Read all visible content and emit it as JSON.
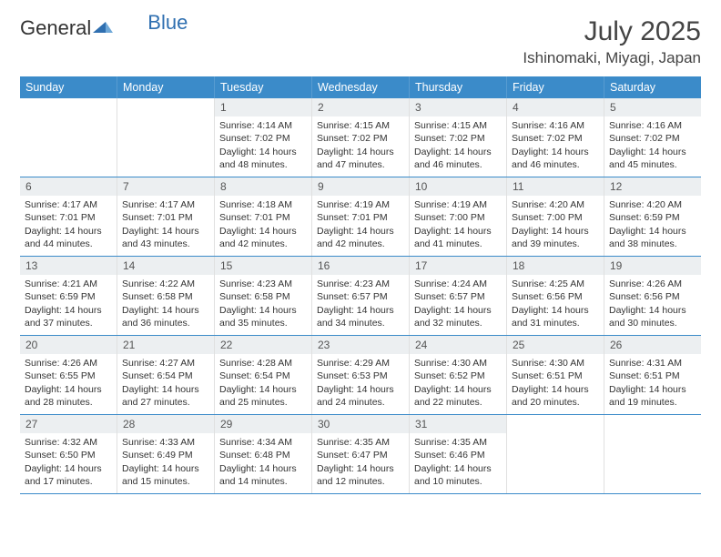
{
  "brand": {
    "part1": "General",
    "part2": "Blue"
  },
  "title": "July 2025",
  "location": "Ishinomaki, Miyagi, Japan",
  "colors": {
    "header_bg": "#3b8bc9",
    "header_text": "#ffffff",
    "daynum_bg": "#eceff1",
    "week_border": "#3b8bc9",
    "cell_border": "#e0e0e0",
    "body_text": "#333333",
    "logo_accent": "#2f6fb0"
  },
  "day_headers": [
    "Sunday",
    "Monday",
    "Tuesday",
    "Wednesday",
    "Thursday",
    "Friday",
    "Saturday"
  ],
  "weeks": [
    [
      {
        "empty": true
      },
      {
        "empty": true
      },
      {
        "n": "1",
        "sunrise": "4:14 AM",
        "sunset": "7:02 PM",
        "daylight": "14 hours and 48 minutes."
      },
      {
        "n": "2",
        "sunrise": "4:15 AM",
        "sunset": "7:02 PM",
        "daylight": "14 hours and 47 minutes."
      },
      {
        "n": "3",
        "sunrise": "4:15 AM",
        "sunset": "7:02 PM",
        "daylight": "14 hours and 46 minutes."
      },
      {
        "n": "4",
        "sunrise": "4:16 AM",
        "sunset": "7:02 PM",
        "daylight": "14 hours and 46 minutes."
      },
      {
        "n": "5",
        "sunrise": "4:16 AM",
        "sunset": "7:02 PM",
        "daylight": "14 hours and 45 minutes."
      }
    ],
    [
      {
        "n": "6",
        "sunrise": "4:17 AM",
        "sunset": "7:01 PM",
        "daylight": "14 hours and 44 minutes."
      },
      {
        "n": "7",
        "sunrise": "4:17 AM",
        "sunset": "7:01 PM",
        "daylight": "14 hours and 43 minutes."
      },
      {
        "n": "8",
        "sunrise": "4:18 AM",
        "sunset": "7:01 PM",
        "daylight": "14 hours and 42 minutes."
      },
      {
        "n": "9",
        "sunrise": "4:19 AM",
        "sunset": "7:01 PM",
        "daylight": "14 hours and 42 minutes."
      },
      {
        "n": "10",
        "sunrise": "4:19 AM",
        "sunset": "7:00 PM",
        "daylight": "14 hours and 41 minutes."
      },
      {
        "n": "11",
        "sunrise": "4:20 AM",
        "sunset": "7:00 PM",
        "daylight": "14 hours and 39 minutes."
      },
      {
        "n": "12",
        "sunrise": "4:20 AM",
        "sunset": "6:59 PM",
        "daylight": "14 hours and 38 minutes."
      }
    ],
    [
      {
        "n": "13",
        "sunrise": "4:21 AM",
        "sunset": "6:59 PM",
        "daylight": "14 hours and 37 minutes."
      },
      {
        "n": "14",
        "sunrise": "4:22 AM",
        "sunset": "6:58 PM",
        "daylight": "14 hours and 36 minutes."
      },
      {
        "n": "15",
        "sunrise": "4:23 AM",
        "sunset": "6:58 PM",
        "daylight": "14 hours and 35 minutes."
      },
      {
        "n": "16",
        "sunrise": "4:23 AM",
        "sunset": "6:57 PM",
        "daylight": "14 hours and 34 minutes."
      },
      {
        "n": "17",
        "sunrise": "4:24 AM",
        "sunset": "6:57 PM",
        "daylight": "14 hours and 32 minutes."
      },
      {
        "n": "18",
        "sunrise": "4:25 AM",
        "sunset": "6:56 PM",
        "daylight": "14 hours and 31 minutes."
      },
      {
        "n": "19",
        "sunrise": "4:26 AM",
        "sunset": "6:56 PM",
        "daylight": "14 hours and 30 minutes."
      }
    ],
    [
      {
        "n": "20",
        "sunrise": "4:26 AM",
        "sunset": "6:55 PM",
        "daylight": "14 hours and 28 minutes."
      },
      {
        "n": "21",
        "sunrise": "4:27 AM",
        "sunset": "6:54 PM",
        "daylight": "14 hours and 27 minutes."
      },
      {
        "n": "22",
        "sunrise": "4:28 AM",
        "sunset": "6:54 PM",
        "daylight": "14 hours and 25 minutes."
      },
      {
        "n": "23",
        "sunrise": "4:29 AM",
        "sunset": "6:53 PM",
        "daylight": "14 hours and 24 minutes."
      },
      {
        "n": "24",
        "sunrise": "4:30 AM",
        "sunset": "6:52 PM",
        "daylight": "14 hours and 22 minutes."
      },
      {
        "n": "25",
        "sunrise": "4:30 AM",
        "sunset": "6:51 PM",
        "daylight": "14 hours and 20 minutes."
      },
      {
        "n": "26",
        "sunrise": "4:31 AM",
        "sunset": "6:51 PM",
        "daylight": "14 hours and 19 minutes."
      }
    ],
    [
      {
        "n": "27",
        "sunrise": "4:32 AM",
        "sunset": "6:50 PM",
        "daylight": "14 hours and 17 minutes."
      },
      {
        "n": "28",
        "sunrise": "4:33 AM",
        "sunset": "6:49 PM",
        "daylight": "14 hours and 15 minutes."
      },
      {
        "n": "29",
        "sunrise": "4:34 AM",
        "sunset": "6:48 PM",
        "daylight": "14 hours and 14 minutes."
      },
      {
        "n": "30",
        "sunrise": "4:35 AM",
        "sunset": "6:47 PM",
        "daylight": "14 hours and 12 minutes."
      },
      {
        "n": "31",
        "sunrise": "4:35 AM",
        "sunset": "6:46 PM",
        "daylight": "14 hours and 10 minutes."
      },
      {
        "empty": true
      },
      {
        "empty": true
      }
    ]
  ],
  "labels": {
    "sunrise": "Sunrise: ",
    "sunset": "Sunset: ",
    "daylight": "Daylight: "
  }
}
